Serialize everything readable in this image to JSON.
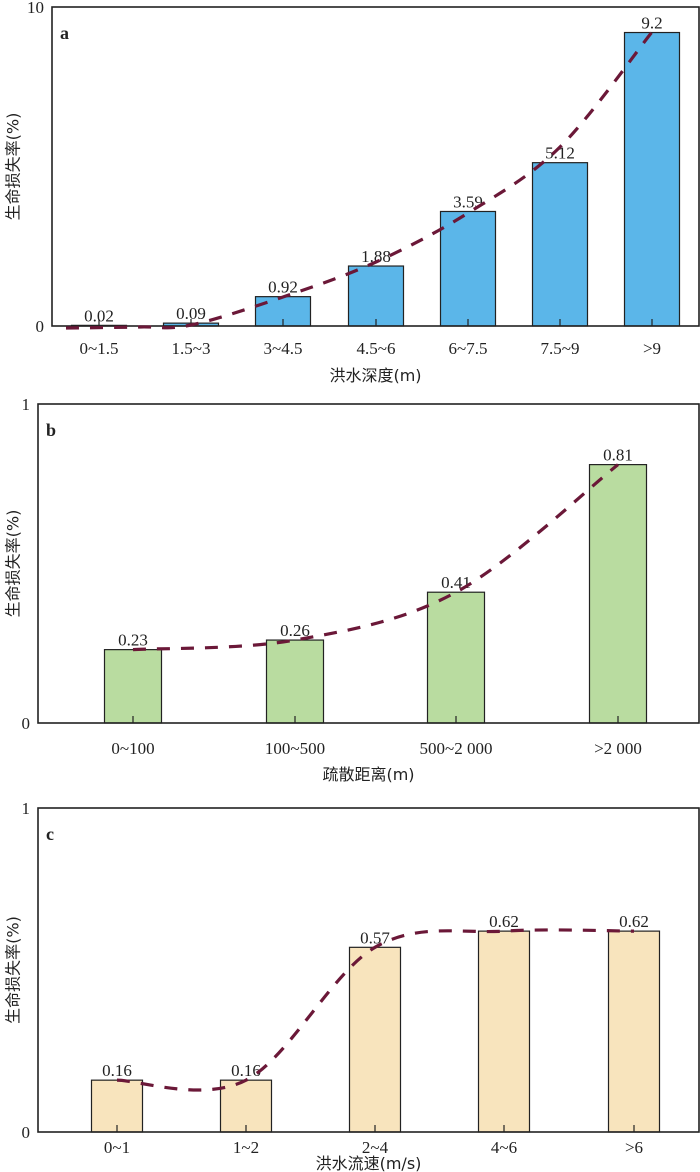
{
  "colors": {
    "trend": "#6b1838",
    "axis": "#222222"
  },
  "chart_data": [
    {
      "type": "bar",
      "panel_label": "a",
      "categories": [
        "0~1.5",
        "1.5~3",
        "3~4.5",
        "4.5~6",
        "6~7.5",
        "7.5~9",
        ">9"
      ],
      "values": [
        0.02,
        0.09,
        0.92,
        1.88,
        3.59,
        5.12,
        9.2
      ],
      "value_labels": [
        "0.02",
        "0.09",
        "0.92",
        "1.88",
        "3.59",
        "5.12",
        "9.2"
      ],
      "xlabel": "洪水深度(m)",
      "ylabel": "生命损失率(%)",
      "ylim": [
        0,
        10
      ],
      "yticks": [
        "0",
        "10"
      ],
      "bar_color": "#5bb6e9",
      "trendline": "dashed-curve"
    },
    {
      "type": "bar",
      "panel_label": "b",
      "categories": [
        "0~100",
        "100~500",
        "500~2 000",
        ">2 000"
      ],
      "values": [
        0.23,
        0.26,
        0.41,
        0.81
      ],
      "value_labels": [
        "0.23",
        "0.26",
        "0.41",
        "0.81"
      ],
      "xlabel": "疏散距离(m)",
      "ylabel": "生命损失率(%)",
      "ylim": [
        0,
        1
      ],
      "yticks": [
        "0",
        "1"
      ],
      "bar_color": "#b9dca0",
      "trendline": "dashed-curve"
    },
    {
      "type": "bar",
      "panel_label": "c",
      "categories": [
        "0~1",
        "1~2",
        "2~4",
        "4~6",
        ">6"
      ],
      "values": [
        0.16,
        0.16,
        0.57,
        0.62,
        0.62
      ],
      "value_labels": [
        "0.16",
        "0.16",
        "0.57",
        "0.62",
        "0.62"
      ],
      "xlabel": "洪水流速(m/s)",
      "ylabel": "生命损失率(%)",
      "ylim": [
        0,
        1
      ],
      "yticks": [
        "0",
        "1"
      ],
      "bar_color": "#f8e4bd",
      "trendline": "dashed-curve"
    }
  ]
}
